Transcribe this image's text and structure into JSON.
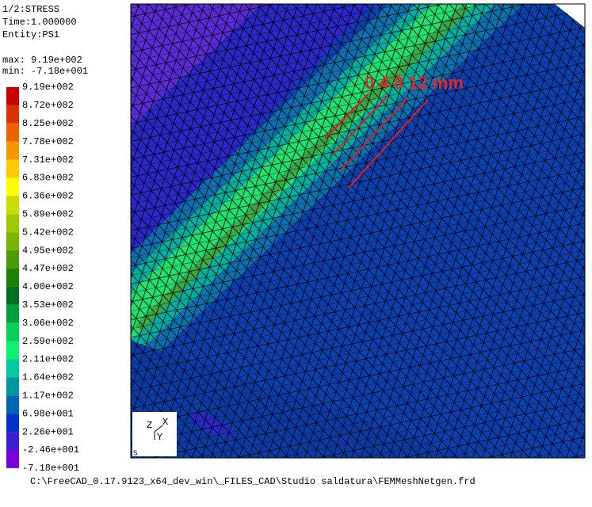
{
  "header": {
    "lines": [
      "1/2:STRESS",
      "Time:1.000000",
      "Entity:PS1"
    ],
    "max": "max: 9.19e+002",
    "min": "min: -7.18e+001"
  },
  "legend": [
    {
      "label": "9.19e+002",
      "color": "#c80000"
    },
    {
      "label": "8.72e+002",
      "color": "#dc3200"
    },
    {
      "label": "8.25e+002",
      "color": "#ec6400"
    },
    {
      "label": "7.78e+002",
      "color": "#f89600"
    },
    {
      "label": "7.31e+002",
      "color": "#ffc800"
    },
    {
      "label": "6.83e+002",
      "color": "#ffff00"
    },
    {
      "label": "6.36e+002",
      "color": "#c8dc00"
    },
    {
      "label": "5.89e+002",
      "color": "#a0c800"
    },
    {
      "label": "5.42e+002",
      "color": "#78b400"
    },
    {
      "label": "4.95e+002",
      "color": "#4a9a00"
    },
    {
      "label": "4.47e+002",
      "color": "#1e8000"
    },
    {
      "label": "4.00e+002",
      "color": "#006e1e"
    },
    {
      "label": "3.53e+002",
      "color": "#00a03c"
    },
    {
      "label": "3.06e+002",
      "color": "#00d25a"
    },
    {
      "label": "2.59e+002",
      "color": "#10f070"
    },
    {
      "label": "2.11e+002",
      "color": "#00c8a0"
    },
    {
      "label": "1.64e+002",
      "color": "#0096a0"
    },
    {
      "label": "1.17e+002",
      "color": "#0064b4"
    },
    {
      "label": "6.98e+001",
      "color": "#0032c8"
    },
    {
      "label": "2.26e+001",
      "color": "#3c1ed2"
    },
    {
      "label": "-2.46e+001",
      "color": "#7800e0"
    },
    {
      "label": "-7.18e+001"
    }
  ],
  "annotation": "0 4 8 12 mm",
  "triad": {
    "z": "Z",
    "x": "X",
    "y": "Y",
    "corner": "S"
  },
  "file_path": "C:\\FreeCAD_0.17.9123_x64_dev_win\\_FILES_CAD\\Studio saldatura\\FEMMeshNetgen.frd"
}
